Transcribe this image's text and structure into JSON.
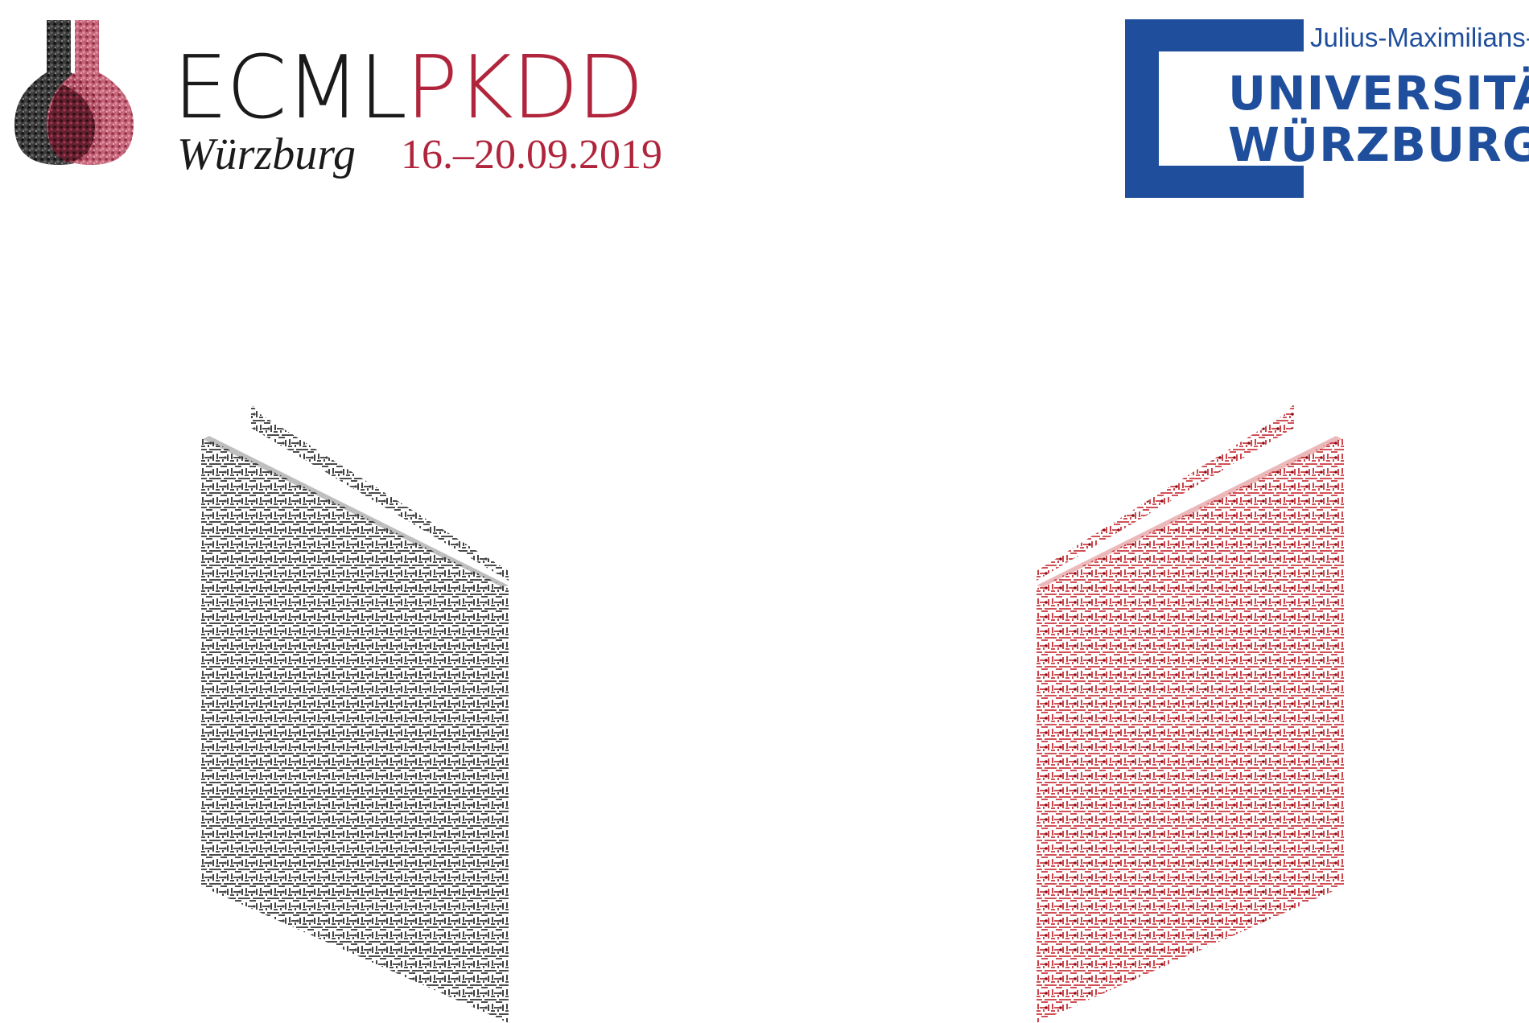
{
  "ecml": {
    "word_ecml": "ECML",
    "word_pkdd": "PKDD",
    "city": "Würzburg",
    "dates": "16.–20.09.2019"
  },
  "university": {
    "line1": "Julius-Maximilians-",
    "line2": "UNIVERSITÄT",
    "line3": "WÜRZBURG"
  },
  "colors": {
    "ecml_dark": "#1a1a1a",
    "pkdd_red": "#b0253c",
    "uni_blue": "#1f4e9c",
    "noise_black": "#000000",
    "noise_red": "#c0161e"
  },
  "icons": {
    "ecml_logo": "flask-icon",
    "university_logo": "bracket-icon",
    "left_art": "noise-book-icon",
    "right_art": "noise-book-icon"
  }
}
